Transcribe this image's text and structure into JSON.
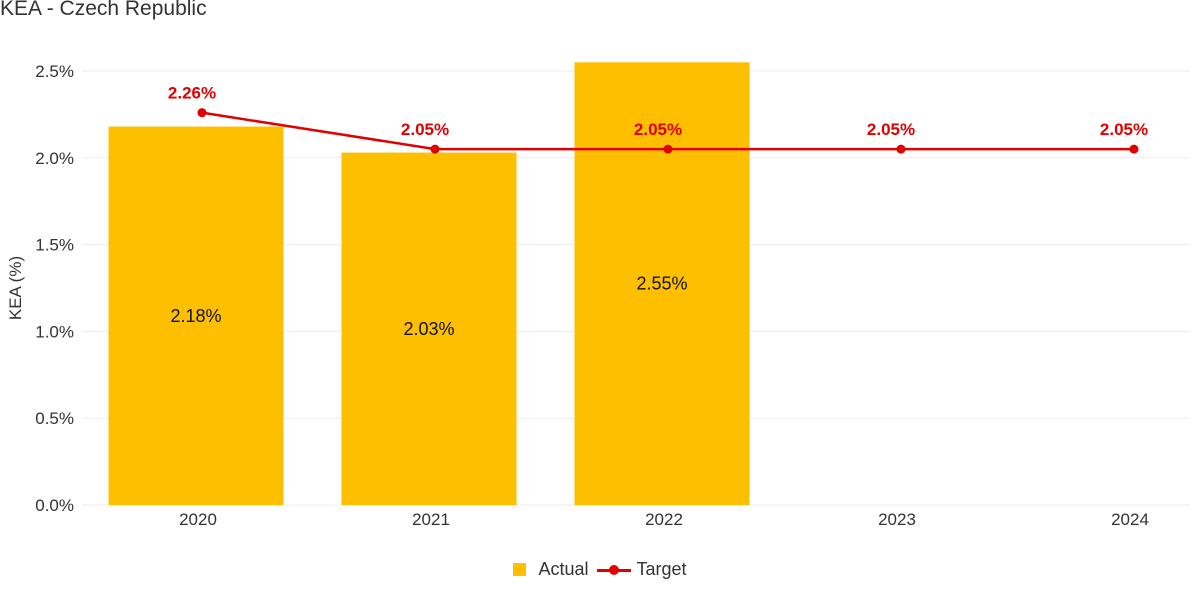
{
  "chart_data": {
    "type": "bar",
    "title": "KEA - Czech Republic",
    "xlabel": "",
    "ylabel": "KEA (%)",
    "categories": [
      "2020",
      "2021",
      "2022",
      "2023",
      "2024"
    ],
    "ylim": [
      0,
      2.5
    ],
    "yticks": [
      "0.0%",
      "0.5%",
      "1.0%",
      "1.5%",
      "2.0%",
      "2.5%"
    ],
    "ytick_values": [
      0,
      0.5,
      1.0,
      1.5,
      2.0,
      2.5
    ],
    "grid": true,
    "legend_position": "bottom-center",
    "series": [
      {
        "name": "Actual",
        "type": "bar",
        "color": "#fdbf00",
        "values": [
          2.18,
          2.03,
          2.55,
          null,
          null
        ],
        "labels": [
          "2.18%",
          "2.03%",
          "2.55%",
          "",
          ""
        ]
      },
      {
        "name": "Target",
        "type": "line",
        "color": "#e00000",
        "values": [
          2.26,
          2.05,
          2.05,
          2.05,
          2.05
        ],
        "labels": [
          "2.26%",
          "2.05%",
          "2.05%",
          "2.05%",
          "2.05%"
        ]
      }
    ]
  }
}
